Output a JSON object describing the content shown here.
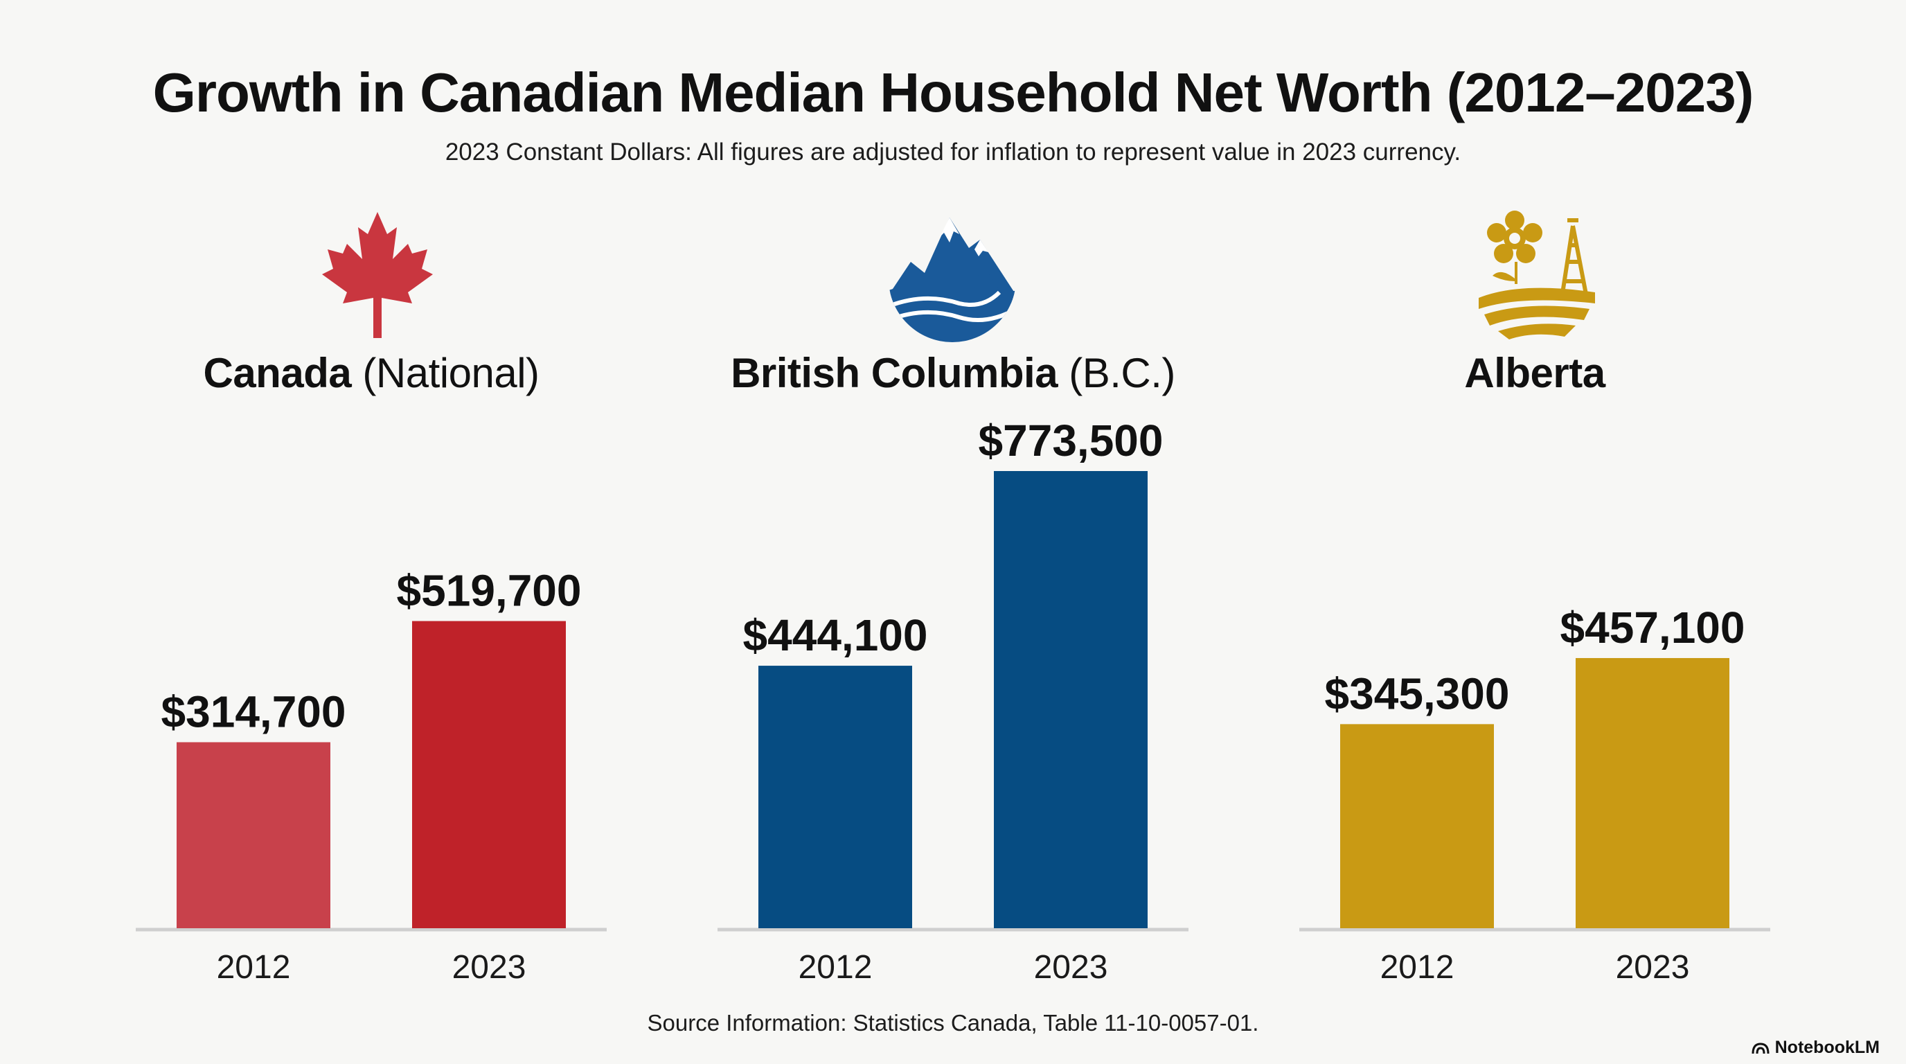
{
  "title": "Growth in Canadian Median Household Net Worth (2012–2023)",
  "subtitle": "2023 Constant Dollars: All figures are adjusted for inflation to represent value in 2023 currency.",
  "source": "Source Information: Statistics Canada, Table 11-10-0057-01.",
  "brand": "NotebookLM",
  "icons": {
    "canada": "maple-leaf-icon",
    "bc": "mountain-wave-icon",
    "alberta": "wild-rose-oil-derrick-icon",
    "brand": "notebooklm-logo-icon"
  },
  "panels": [
    {
      "name_bold": "Canada",
      "name_light": " (National)"
    },
    {
      "name_bold": "British Columbia",
      "name_light": " (B.C.)"
    },
    {
      "name_bold": "Alberta",
      "name_light": ""
    }
  ],
  "chart_data": [
    {
      "type": "bar",
      "region": "Canada (National)",
      "categories": [
        "2012",
        "2023"
      ],
      "values": [
        314700,
        519700
      ],
      "labels": [
        "$314,700",
        "$519,700"
      ],
      "colors": [
        "#c8414b",
        "#bf2229"
      ]
    },
    {
      "type": "bar",
      "region": "British Columbia (B.C.)",
      "categories": [
        "2012",
        "2023"
      ],
      "values": [
        444100,
        773500
      ],
      "labels": [
        "$444,100",
        "$773,500"
      ],
      "colors": [
        "#064c82",
        "#064c82"
      ]
    },
    {
      "type": "bar",
      "region": "Alberta",
      "categories": [
        "2012",
        "2023"
      ],
      "values": [
        345300,
        457100
      ],
      "labels": [
        "$345,300",
        "$457,100"
      ],
      "colors": [
        "#c99a14",
        "#c99a14"
      ]
    }
  ]
}
